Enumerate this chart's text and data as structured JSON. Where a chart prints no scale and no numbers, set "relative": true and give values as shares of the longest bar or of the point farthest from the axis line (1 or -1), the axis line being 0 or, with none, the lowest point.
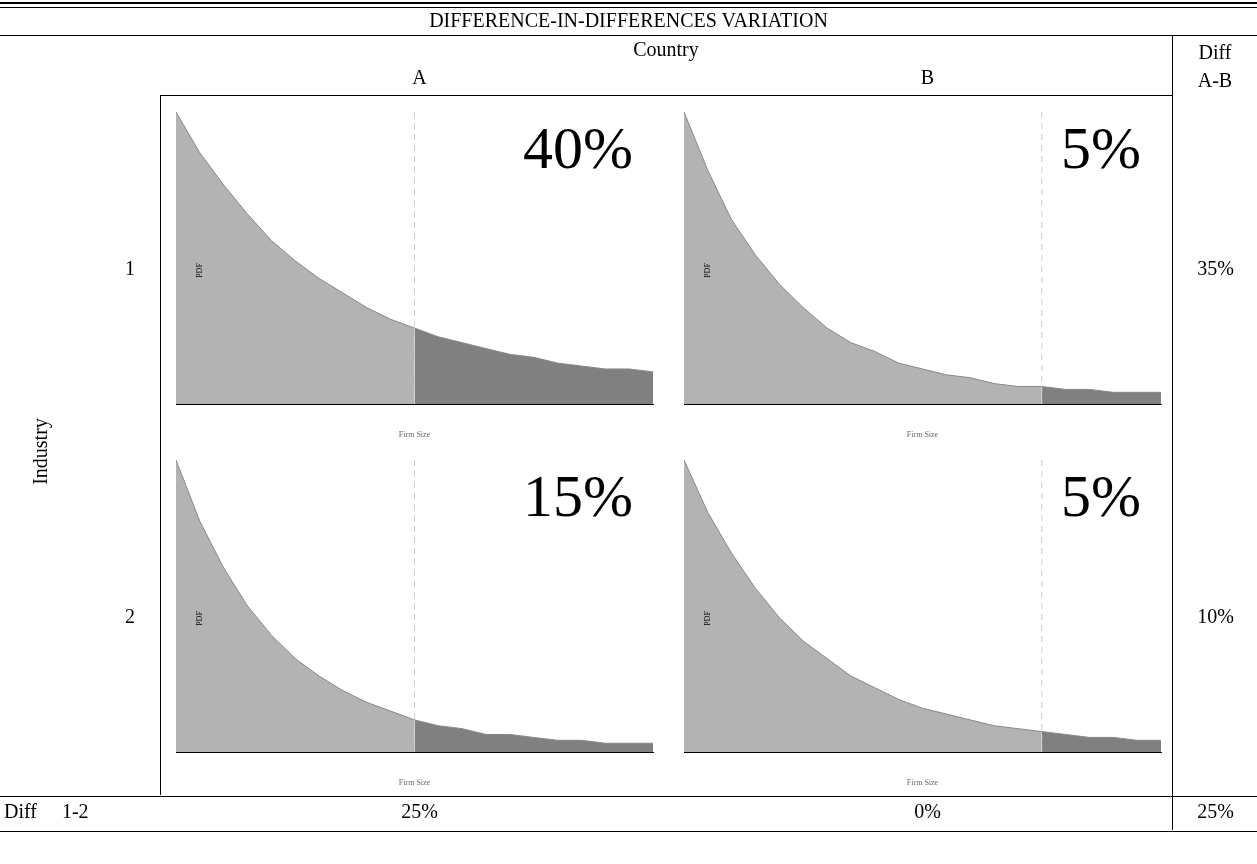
{
  "chart_data": [
    {
      "type": "area",
      "relative": true,
      "xlabel": "Firm Size",
      "ylabel": "PDF",
      "annotations": [
        "40%"
      ],
      "categories": [
        null,
        null,
        null,
        null,
        null,
        null,
        null,
        null,
        null,
        null,
        null,
        null,
        null,
        null,
        null,
        null,
        null,
        null,
        null,
        null,
        null
      ],
      "series": [
        {
          "color": "#b3b3b3",
          "values": [
            1.0,
            0.86,
            0.75,
            0.65,
            0.56,
            0.49,
            0.43,
            0.38,
            0.33,
            0.29,
            0.26,
            null,
            null,
            null,
            null,
            null,
            null,
            null,
            null,
            null,
            null
          ]
        },
        {
          "color": "#808080",
          "values": [
            null,
            null,
            null,
            null,
            null,
            null,
            null,
            null,
            null,
            null,
            0.26,
            0.23,
            0.21,
            0.19,
            0.17,
            0.16,
            0.14,
            0.13,
            0.12,
            0.12,
            0.11
          ]
        }
      ]
    },
    {
      "type": "area",
      "relative": true,
      "xlabel": "Firm Size",
      "ylabel": "PDF",
      "annotations": [
        "5%"
      ],
      "categories": [
        null,
        null,
        null,
        null,
        null,
        null,
        null,
        null,
        null,
        null,
        null,
        null,
        null,
        null,
        null,
        null,
        null,
        null,
        null,
        null,
        null
      ],
      "series": [
        {
          "color": "#b3b3b3",
          "values": [
            1.0,
            0.8,
            0.63,
            0.51,
            0.41,
            0.33,
            0.26,
            0.21,
            0.18,
            0.14,
            0.12,
            0.1,
            0.09,
            0.07,
            0.06,
            0.06,
            null,
            null,
            null,
            null,
            null
          ]
        },
        {
          "color": "#808080",
          "values": [
            null,
            null,
            null,
            null,
            null,
            null,
            null,
            null,
            null,
            null,
            null,
            null,
            null,
            null,
            null,
            0.06,
            0.05,
            0.05,
            0.04,
            0.04,
            0.04
          ]
        }
      ]
    },
    {
      "type": "area",
      "relative": true,
      "xlabel": "Firm Size",
      "ylabel": "PDF",
      "annotations": [
        "15%"
      ],
      "categories": [
        null,
        null,
        null,
        null,
        null,
        null,
        null,
        null,
        null,
        null,
        null,
        null,
        null,
        null,
        null,
        null,
        null,
        null,
        null,
        null,
        null
      ],
      "series": [
        {
          "color": "#b3b3b3",
          "values": [
            1.0,
            0.79,
            0.63,
            0.5,
            0.4,
            0.32,
            0.26,
            0.21,
            0.17,
            0.14,
            0.11,
            null,
            null,
            null,
            null,
            null,
            null,
            null,
            null,
            null,
            null
          ]
        },
        {
          "color": "#808080",
          "values": [
            null,
            null,
            null,
            null,
            null,
            null,
            null,
            null,
            null,
            null,
            0.11,
            0.09,
            0.08,
            0.06,
            0.06,
            0.05,
            0.04,
            0.04,
            0.03,
            0.03,
            0.03
          ]
        }
      ]
    },
    {
      "type": "area",
      "relative": true,
      "xlabel": "Firm Size",
      "ylabel": "PDF",
      "annotations": [
        "5%"
      ],
      "categories": [
        null,
        null,
        null,
        null,
        null,
        null,
        null,
        null,
        null,
        null,
        null,
        null,
        null,
        null,
        null,
        null,
        null,
        null,
        null,
        null,
        null
      ],
      "series": [
        {
          "color": "#b3b3b3",
          "values": [
            1.0,
            0.82,
            0.68,
            0.56,
            0.46,
            0.38,
            0.32,
            0.26,
            0.22,
            0.18,
            0.15,
            0.13,
            0.11,
            0.09,
            0.08,
            0.07,
            null,
            null,
            null,
            null,
            null
          ]
        },
        {
          "color": "#808080",
          "values": [
            null,
            null,
            null,
            null,
            null,
            null,
            null,
            null,
            null,
            null,
            null,
            null,
            null,
            null,
            null,
            0.07,
            0.06,
            0.05,
            0.05,
            0.04,
            0.04
          ]
        }
      ]
    },
    {
      "type": "other",
      "title": "DIFFERENCE-IN-DIFFERENCES VARIATION",
      "xlabel": "Country",
      "ylabel": "Industry",
      "categories": [
        "A",
        "B",
        "Diff A-B"
      ],
      "y_categories": [
        "1",
        "2",
        "Diff 1-2"
      ],
      "annotations": [
        "35%",
        "10%",
        "25%",
        "0%",
        "25%"
      ]
    }
  ]
}
